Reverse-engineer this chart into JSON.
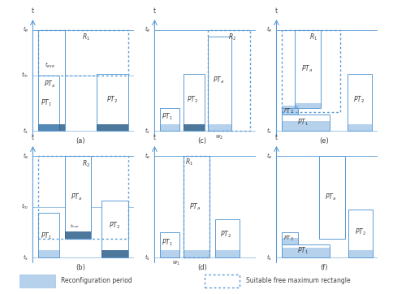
{
  "bg_color": "#ffffff",
  "edge_color": "#5b9bd5",
  "fill_color": "#5b9bd5",
  "fill_alpha": 0.45,
  "dark_fill_color": "#2e5f8a",
  "dark_fill_alpha": 0.85,
  "dashed_color": "#5b9bd5",
  "text_color": "#404040",
  "axis_color": "#5b9bd5",
  "subplot_labels": [
    "(a)",
    "(b)",
    "(c)",
    "(d)",
    "(e)",
    "(f)"
  ]
}
